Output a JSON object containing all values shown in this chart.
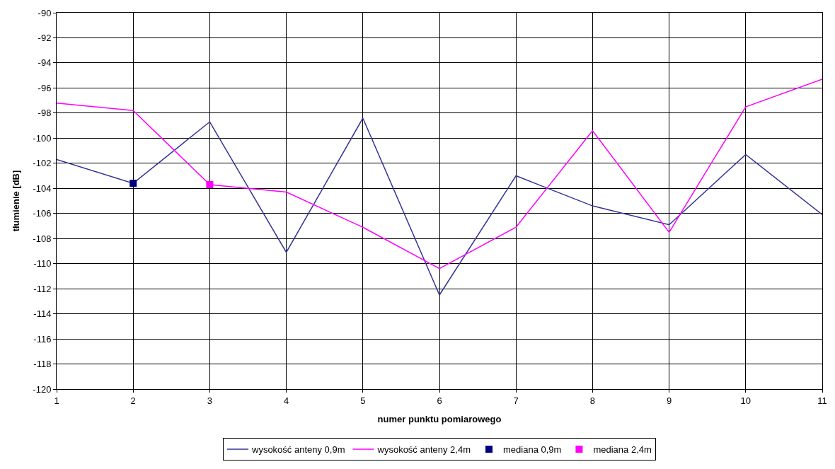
{
  "chart_data": {
    "type": "line",
    "xlabel": "numer punktu pomiarowego",
    "ylabel": "tłumienie [dB]",
    "x": [
      1,
      2,
      3,
      4,
      5,
      6,
      7,
      8,
      9,
      10,
      11
    ],
    "xlim": [
      1,
      11
    ],
    "xticks": [
      1,
      2,
      3,
      4,
      5,
      6,
      7,
      8,
      9,
      10,
      11
    ],
    "ylim": [
      -120,
      -90
    ],
    "yticks": [
      -120,
      -118,
      -116,
      -114,
      -112,
      -110,
      -108,
      -106,
      -104,
      -102,
      -100,
      -98,
      -96,
      -94,
      -92,
      -90
    ],
    "grid": true,
    "legend": "bottom",
    "marker": "none",
    "line_style": "solid",
    "series": [
      {
        "name": "wysokość anteny 0,9m",
        "color": "#333399",
        "values": [
          -101.7,
          -103.6,
          -98.7,
          -109.1,
          -98.4,
          -112.5,
          -103.0,
          -105.4,
          -106.9,
          -101.3,
          -106.1
        ]
      },
      {
        "name": "wysokość anteny 2,4m",
        "color": "#ff00ff",
        "values": [
          -97.2,
          -97.8,
          -103.7,
          -104.3,
          -107.1,
          -110.4,
          -107.1,
          -99.4,
          -107.5,
          -97.5,
          -95.3
        ]
      },
      {
        "name": "mediana 0,9m",
        "type": "scatter",
        "marker": "square",
        "color": "#000080",
        "x": [
          2
        ],
        "values": [
          -103.6
        ]
      },
      {
        "name": "mediana 2,4m",
        "type": "scatter",
        "marker": "square",
        "color": "#ff00ff",
        "x": [
          3
        ],
        "values": [
          -103.7
        ]
      }
    ]
  }
}
